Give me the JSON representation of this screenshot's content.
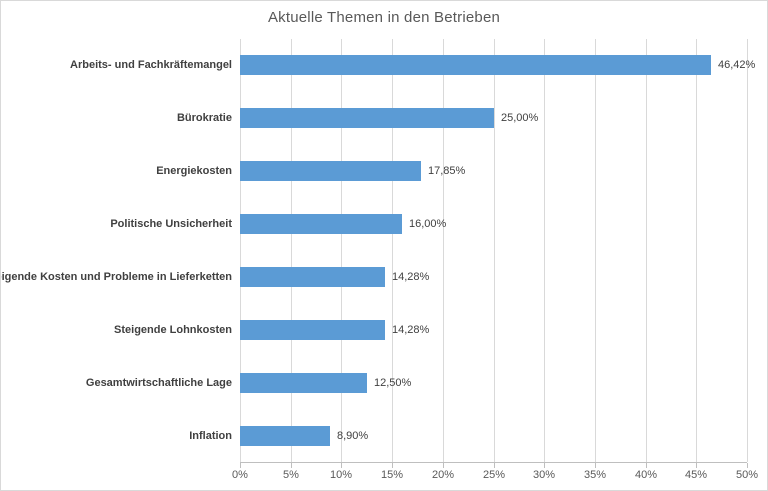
{
  "chart_data": {
    "type": "bar",
    "orientation": "horizontal",
    "title": "Aktuelle Themen in den Betrieben",
    "categories": [
      "Arbeits- und Fachkräftemangel",
      "Bürokratie",
      "Energiekosten",
      "Politische Unsicherheit",
      "Steigende Kosten und Probleme in Lieferketten",
      "Steigende Lohnkosten",
      "Gesamtwirtschaftliche Lage",
      "Inflation"
    ],
    "values": [
      46.42,
      25.0,
      17.85,
      16.0,
      14.28,
      14.28,
      12.5,
      8.9
    ],
    "value_labels": [
      "46,42%",
      "25,00%",
      "17,85%",
      "16,00%",
      "14,28%",
      "14,28%",
      "12,50%",
      "8,90%"
    ],
    "xlabel": "",
    "ylabel": "",
    "xlim": [
      0,
      50
    ],
    "x_tick_step": 5,
    "x_tick_labels": [
      "0%",
      "5%",
      "10%",
      "15%",
      "20%",
      "25%",
      "30%",
      "35%",
      "40%",
      "45%",
      "50%"
    ],
    "grid": "vertical",
    "legend_position": "none",
    "bar_color": "#5b9bd5",
    "gridline_color": "#d9d9d9",
    "axis_line_color": "#bfbfbf",
    "title_color": "#595959",
    "label_color": "#404040",
    "tick_label_color": "#595959"
  }
}
